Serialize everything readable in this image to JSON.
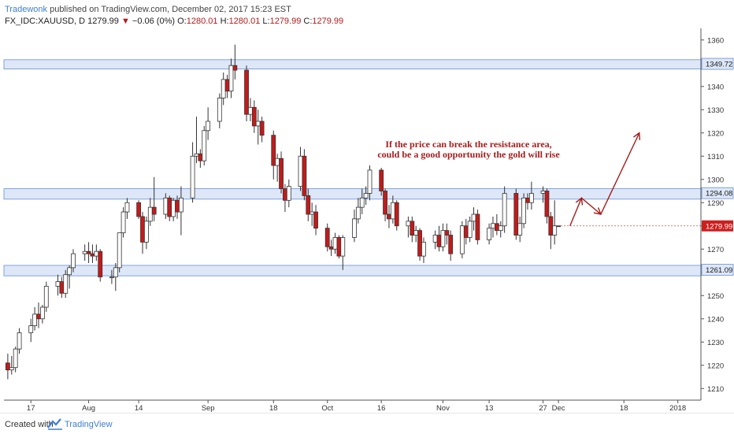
{
  "header": {
    "author": "Tradewonk",
    "published_text": "published on TradingView.com, December 02, 2017 15:23 EST",
    "symbol": "FX_IDC:XAUUSD, D",
    "last": "1279.99",
    "change_arrow": "▼",
    "change": "−0.06 (0%)",
    "o_label": "O:",
    "o_value": "1280.01",
    "h_label": "H:",
    "h_value": "1280.01",
    "l_label": "L:",
    "l_value": "1279.99",
    "c_label": "C:",
    "c_value": "1279.99"
  },
  "footer": {
    "created_with": "Created with",
    "brand": "TradingView"
  },
  "colors": {
    "up_body": "#ffffff",
    "down_body": "#c41a1a",
    "wick": "#333333",
    "zone_fill": "#dde7f7",
    "zone_line": "#6b8fd6",
    "annotation": "#a61b1b",
    "price_label_bg": "#cc1f1f"
  },
  "chart_data": {
    "type": "candlestick",
    "ylim": [
      1205,
      1365
    ],
    "y_ticks": [
      1210,
      1220,
      1230,
      1240,
      1250,
      1260,
      1270,
      1280,
      1290,
      1300,
      1310,
      1320,
      1330,
      1340,
      1350,
      1360
    ],
    "x_ticks": [
      {
        "label": "17",
        "x": "2017-07-17"
      },
      {
        "label": "Aug",
        "x": "2017-08-01"
      },
      {
        "label": "14",
        "x": "2017-08-14"
      },
      {
        "label": "Sep",
        "x": "2017-09-01"
      },
      {
        "label": "18",
        "x": "2017-09-18"
      },
      {
        "label": "Oct",
        "x": "2017-10-02"
      },
      {
        "label": "16",
        "x": "2017-10-16"
      },
      {
        "label": "Nov",
        "x": "2017-11-01"
      },
      {
        "label": "13",
        "x": "2017-11-13"
      },
      {
        "label": "27",
        "x": "2017-11-27"
      },
      {
        "label": "Dec",
        "x": "2017-12-01"
      },
      {
        "label": "18",
        "x": "2017-12-18"
      },
      {
        "label": "2018",
        "x": "2018-01-01"
      }
    ],
    "candles": [
      {
        "x": "2017-07-11",
        "o": 1221,
        "h": 1225,
        "l": 1214,
        "c": 1218
      },
      {
        "x": "2017-07-12",
        "o": 1218,
        "h": 1224,
        "l": 1216,
        "c": 1219
      },
      {
        "x": "2017-07-13",
        "o": 1219,
        "h": 1228,
        "l": 1217,
        "c": 1227
      },
      {
        "x": "2017-07-14",
        "o": 1227,
        "h": 1236,
        "l": 1225,
        "c": 1234
      },
      {
        "x": "2017-07-17",
        "o": 1234,
        "h": 1240,
        "l": 1230,
        "c": 1237
      },
      {
        "x": "2017-07-18",
        "o": 1237,
        "h": 1245,
        "l": 1235,
        "c": 1242
      },
      {
        "x": "2017-07-19",
        "o": 1242,
        "h": 1247,
        "l": 1236,
        "c": 1240
      },
      {
        "x": "2017-07-20",
        "o": 1240,
        "h": 1246,
        "l": 1238,
        "c": 1245
      },
      {
        "x": "2017-07-21",
        "o": 1245,
        "h": 1256,
        "l": 1243,
        "c": 1254
      },
      {
        "x": "2017-07-24",
        "o": 1254,
        "h": 1259,
        "l": 1250,
        "c": 1256
      },
      {
        "x": "2017-07-25",
        "o": 1256,
        "h": 1258,
        "l": 1249,
        "c": 1251
      },
      {
        "x": "2017-07-26",
        "o": 1251,
        "h": 1261,
        "l": 1249,
        "c": 1259
      },
      {
        "x": "2017-07-27",
        "o": 1259,
        "h": 1263,
        "l": 1253,
        "c": 1262
      },
      {
        "x": "2017-07-28",
        "o": 1262,
        "h": 1270,
        "l": 1260,
        "c": 1268
      },
      {
        "x": "2017-07-31",
        "o": 1268,
        "h": 1272,
        "l": 1265,
        "c": 1269
      },
      {
        "x": "2017-08-01",
        "o": 1269,
        "h": 1273,
        "l": 1264,
        "c": 1268
      },
      {
        "x": "2017-08-02",
        "o": 1268,
        "h": 1272,
        "l": 1264,
        "c": 1267
      },
      {
        "x": "2017-08-03",
        "o": 1267,
        "h": 1272,
        "l": 1265,
        "c": 1269
      },
      {
        "x": "2017-08-04",
        "o": 1269,
        "h": 1270,
        "l": 1256,
        "c": 1258
      },
      {
        "x": "2017-08-07",
        "o": 1258,
        "h": 1261,
        "l": 1255,
        "c": 1258
      },
      {
        "x": "2017-08-08",
        "o": 1258,
        "h": 1264,
        "l": 1252,
        "c": 1262
      },
      {
        "x": "2017-08-09",
        "o": 1262,
        "h": 1276,
        "l": 1260,
        "c": 1277
      },
      {
        "x": "2017-08-10",
        "o": 1277,
        "h": 1288,
        "l": 1275,
        "c": 1286
      },
      {
        "x": "2017-08-11",
        "o": 1286,
        "h": 1292,
        "l": 1283,
        "c": 1290
      },
      {
        "x": "2017-08-14",
        "o": 1290,
        "h": 1291,
        "l": 1283,
        "c": 1284
      },
      {
        "x": "2017-08-15",
        "o": 1284,
        "h": 1286,
        "l": 1268,
        "c": 1273
      },
      {
        "x": "2017-08-16",
        "o": 1273,
        "h": 1284,
        "l": 1270,
        "c": 1282
      },
      {
        "x": "2017-08-17",
        "o": 1282,
        "h": 1292,
        "l": 1280,
        "c": 1288
      },
      {
        "x": "2017-08-18",
        "o": 1288,
        "h": 1301,
        "l": 1282,
        "c": 1285
      },
      {
        "x": "2017-08-21",
        "o": 1285,
        "h": 1294,
        "l": 1283,
        "c": 1292
      },
      {
        "x": "2017-08-22",
        "o": 1292,
        "h": 1293,
        "l": 1282,
        "c": 1284
      },
      {
        "x": "2017-08-23",
        "o": 1284,
        "h": 1292,
        "l": 1282,
        "c": 1291
      },
      {
        "x": "2017-08-24",
        "o": 1291,
        "h": 1293,
        "l": 1283,
        "c": 1286
      },
      {
        "x": "2017-08-25",
        "o": 1286,
        "h": 1297,
        "l": 1276,
        "c": 1292
      },
      {
        "x": "2017-08-28",
        "o": 1292,
        "h": 1316,
        "l": 1290,
        "c": 1310
      },
      {
        "x": "2017-08-29",
        "o": 1310,
        "h": 1327,
        "l": 1307,
        "c": 1311
      },
      {
        "x": "2017-08-30",
        "o": 1311,
        "h": 1313,
        "l": 1305,
        "c": 1308
      },
      {
        "x": "2017-08-31",
        "o": 1308,
        "h": 1323,
        "l": 1306,
        "c": 1321
      },
      {
        "x": "2017-09-01",
        "o": 1321,
        "h": 1331,
        "l": 1317,
        "c": 1325
      },
      {
        "x": "2017-09-04",
        "o": 1325,
        "h": 1337,
        "l": 1322,
        "c": 1335
      },
      {
        "x": "2017-09-05",
        "o": 1335,
        "h": 1346,
        "l": 1332,
        "c": 1343
      },
      {
        "x": "2017-09-06",
        "o": 1343,
        "h": 1345,
        "l": 1335,
        "c": 1338
      },
      {
        "x": "2017-09-07",
        "o": 1338,
        "h": 1352,
        "l": 1335,
        "c": 1349
      },
      {
        "x": "2017-09-08",
        "o": 1349,
        "h": 1358,
        "l": 1343,
        "c": 1347
      },
      {
        "x": "2017-09-11",
        "o": 1347,
        "h": 1349,
        "l": 1325,
        "c": 1328
      },
      {
        "x": "2017-09-12",
        "o": 1328,
        "h": 1335,
        "l": 1325,
        "c": 1331
      },
      {
        "x": "2017-09-13",
        "o": 1331,
        "h": 1334,
        "l": 1320,
        "c": 1323
      },
      {
        "x": "2017-09-14",
        "o": 1323,
        "h": 1330,
        "l": 1315,
        "c": 1325
      },
      {
        "x": "2017-09-15",
        "o": 1325,
        "h": 1327,
        "l": 1316,
        "c": 1319
      },
      {
        "x": "2017-09-18",
        "o": 1319,
        "h": 1321,
        "l": 1300,
        "c": 1306
      },
      {
        "x": "2017-09-19",
        "o": 1306,
        "h": 1311,
        "l": 1299,
        "c": 1309
      },
      {
        "x": "2017-09-20",
        "o": 1309,
        "h": 1312,
        "l": 1294,
        "c": 1296
      },
      {
        "x": "2017-09-21",
        "o": 1296,
        "h": 1298,
        "l": 1286,
        "c": 1291
      },
      {
        "x": "2017-09-22",
        "o": 1291,
        "h": 1300,
        "l": 1288,
        "c": 1297
      },
      {
        "x": "2017-09-25",
        "o": 1297,
        "h": 1314,
        "l": 1295,
        "c": 1310
      },
      {
        "x": "2017-09-26",
        "o": 1310,
        "h": 1313,
        "l": 1291,
        "c": 1293
      },
      {
        "x": "2017-09-27",
        "o": 1293,
        "h": 1296,
        "l": 1282,
        "c": 1285
      },
      {
        "x": "2017-09-28",
        "o": 1285,
        "h": 1290,
        "l": 1280,
        "c": 1286
      },
      {
        "x": "2017-09-29",
        "o": 1286,
        "h": 1289,
        "l": 1276,
        "c": 1279
      },
      {
        "x": "2017-10-02",
        "o": 1279,
        "h": 1281,
        "l": 1269,
        "c": 1271
      },
      {
        "x": "2017-10-03",
        "o": 1271,
        "h": 1274,
        "l": 1267,
        "c": 1270
      },
      {
        "x": "2017-10-04",
        "o": 1270,
        "h": 1277,
        "l": 1268,
        "c": 1275
      },
      {
        "x": "2017-10-05",
        "o": 1275,
        "h": 1276,
        "l": 1266,
        "c": 1267
      },
      {
        "x": "2017-10-06",
        "o": 1267,
        "h": 1276,
        "l": 1261,
        "c": 1275
      },
      {
        "x": "2017-10-09",
        "o": 1275,
        "h": 1287,
        "l": 1273,
        "c": 1283
      },
      {
        "x": "2017-10-10",
        "o": 1283,
        "h": 1292,
        "l": 1281,
        "c": 1288
      },
      {
        "x": "2017-10-11",
        "o": 1288,
        "h": 1296,
        "l": 1285,
        "c": 1292
      },
      {
        "x": "2017-10-12",
        "o": 1292,
        "h": 1297,
        "l": 1289,
        "c": 1294
      },
      {
        "x": "2017-10-13",
        "o": 1294,
        "h": 1306,
        "l": 1291,
        "c": 1304
      },
      {
        "x": "2017-10-16",
        "o": 1304,
        "h": 1305,
        "l": 1293,
        "c": 1295
      },
      {
        "x": "2017-10-17",
        "o": 1295,
        "h": 1296,
        "l": 1282,
        "c": 1285
      },
      {
        "x": "2017-10-18",
        "o": 1285,
        "h": 1289,
        "l": 1279,
        "c": 1283
      },
      {
        "x": "2017-10-19",
        "o": 1283,
        "h": 1293,
        "l": 1281,
        "c": 1290
      },
      {
        "x": "2017-10-20",
        "o": 1290,
        "h": 1291,
        "l": 1278,
        "c": 1280
      },
      {
        "x": "2017-10-23",
        "o": 1280,
        "h": 1284,
        "l": 1275,
        "c": 1282
      },
      {
        "x": "2017-10-24",
        "o": 1282,
        "h": 1284,
        "l": 1273,
        "c": 1276
      },
      {
        "x": "2017-10-25",
        "o": 1276,
        "h": 1280,
        "l": 1273,
        "c": 1278
      },
      {
        "x": "2017-10-26",
        "o": 1278,
        "h": 1279,
        "l": 1265,
        "c": 1267
      },
      {
        "x": "2017-10-27",
        "o": 1267,
        "h": 1275,
        "l": 1264,
        "c": 1273
      },
      {
        "x": "2017-10-30",
        "o": 1273,
        "h": 1278,
        "l": 1270,
        "c": 1276
      },
      {
        "x": "2017-10-31",
        "o": 1276,
        "h": 1280,
        "l": 1269,
        "c": 1271
      },
      {
        "x": "2017-11-01",
        "o": 1271,
        "h": 1281,
        "l": 1269,
        "c": 1278
      },
      {
        "x": "2017-11-02",
        "o": 1278,
        "h": 1281,
        "l": 1272,
        "c": 1276
      },
      {
        "x": "2017-11-03",
        "o": 1276,
        "h": 1278,
        "l": 1265,
        "c": 1268
      },
      {
        "x": "2017-11-06",
        "o": 1268,
        "h": 1282,
        "l": 1266,
        "c": 1280
      },
      {
        "x": "2017-11-07",
        "o": 1280,
        "h": 1283,
        "l": 1272,
        "c": 1275
      },
      {
        "x": "2017-11-08",
        "o": 1275,
        "h": 1284,
        "l": 1273,
        "c": 1282
      },
      {
        "x": "2017-11-09",
        "o": 1282,
        "h": 1288,
        "l": 1278,
        "c": 1285
      },
      {
        "x": "2017-11-10",
        "o": 1285,
        "h": 1287,
        "l": 1272,
        "c": 1274
      },
      {
        "x": "2017-11-13",
        "o": 1274,
        "h": 1281,
        "l": 1272,
        "c": 1279
      },
      {
        "x": "2017-11-14",
        "o": 1279,
        "h": 1284,
        "l": 1275,
        "c": 1281
      },
      {
        "x": "2017-11-15",
        "o": 1281,
        "h": 1285,
        "l": 1276,
        "c": 1278
      },
      {
        "x": "2017-11-16",
        "o": 1278,
        "h": 1282,
        "l": 1275,
        "c": 1280
      },
      {
        "x": "2017-11-17",
        "o": 1280,
        "h": 1297,
        "l": 1277,
        "c": 1294
      },
      {
        "x": "2017-11-20",
        "o": 1294,
        "h": 1296,
        "l": 1274,
        "c": 1276
      },
      {
        "x": "2017-11-21",
        "o": 1276,
        "h": 1284,
        "l": 1273,
        "c": 1281
      },
      {
        "x": "2017-11-22",
        "o": 1281,
        "h": 1294,
        "l": 1279,
        "c": 1292
      },
      {
        "x": "2017-11-23",
        "o": 1292,
        "h": 1294,
        "l": 1287,
        "c": 1290
      },
      {
        "x": "2017-11-24",
        "o": 1290,
        "h": 1299,
        "l": 1287,
        "c": 1294
      },
      {
        "x": "2017-11-27",
        "o": 1294,
        "h": 1297,
        "l": 1290,
        "c": 1295
      },
      {
        "x": "2017-11-28",
        "o": 1295,
        "h": 1296,
        "l": 1281,
        "c": 1284
      },
      {
        "x": "2017-11-29",
        "o": 1284,
        "h": 1286,
        "l": 1270,
        "c": 1276
      },
      {
        "x": "2017-11-30",
        "o": 1276,
        "h": 1291,
        "l": 1272,
        "c": 1280
      },
      {
        "x": "2017-12-01",
        "o": 1280.01,
        "h": 1280.01,
        "l": 1279.99,
        "c": 1279.99
      }
    ],
    "zones": [
      {
        "name": "resistance-top",
        "price": 1349.72,
        "low": 1347.5,
        "high": 1351.5,
        "label": "1349.72"
      },
      {
        "name": "resistance-mid",
        "price": 1294.08,
        "low": 1291.5,
        "high": 1296,
        "label": "1294.08"
      },
      {
        "name": "support",
        "price": 1261.09,
        "low": 1258.5,
        "high": 1263,
        "label": "1261.09"
      }
    ],
    "last_price_label": "1279.99",
    "annotation": {
      "line1": "If the price can break the resistance area,",
      "line2": "could be a good opportunity the gold will rise"
    },
    "projection": [
      {
        "x": "2017-12-04",
        "y": 1280
      },
      {
        "x": "2017-12-07",
        "y": 1292
      },
      {
        "x": "2017-12-12",
        "y": 1285
      },
      {
        "x": "2017-12-22",
        "y": 1320
      }
    ]
  }
}
